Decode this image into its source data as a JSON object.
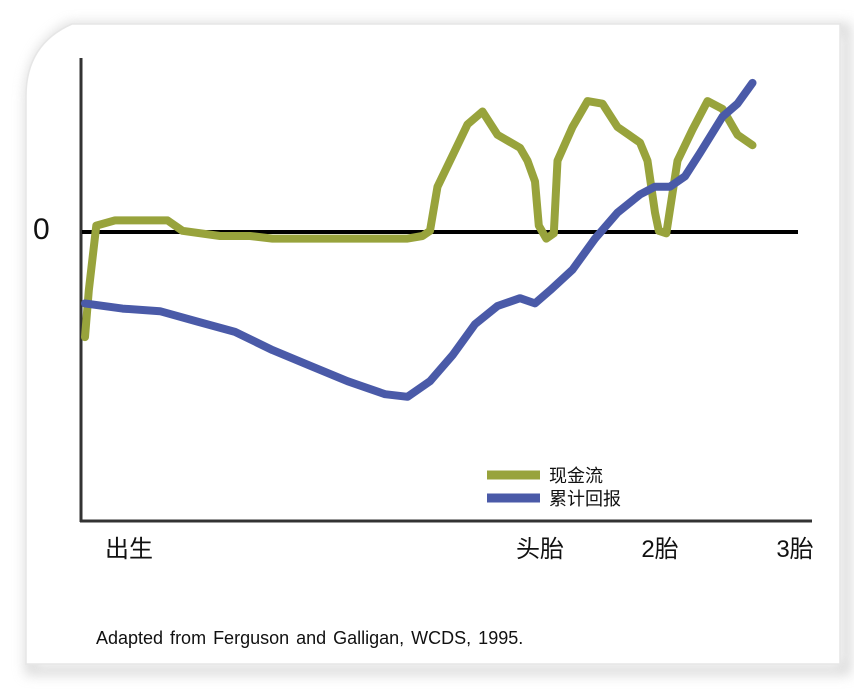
{
  "chart_data": {
    "type": "line",
    "y_zero_label": "0",
    "x_tick_labels": [
      {
        "label": "出生",
        "x": 0
      },
      {
        "label": "头胎",
        "x": 0.62
      },
      {
        "label": "2胎",
        "x": 0.78
      },
      {
        "label": "3胎",
        "x": 0.96
      }
    ],
    "ylim": [
      -1.0,
      0.6
    ],
    "xlim": [
      0,
      1
    ],
    "series": [
      {
        "name": "现金流",
        "color": "#98a33c",
        "points": [
          [
            0.0,
            -0.48
          ],
          [
            0.005,
            -0.3
          ],
          [
            0.015,
            -0.05
          ],
          [
            0.04,
            -0.03
          ],
          [
            0.11,
            -0.03
          ],
          [
            0.13,
            -0.07
          ],
          [
            0.18,
            -0.09
          ],
          [
            0.22,
            -0.09
          ],
          [
            0.25,
            -0.1
          ],
          [
            0.3,
            -0.1
          ],
          [
            0.43,
            -0.1
          ],
          [
            0.45,
            -0.09
          ],
          [
            0.46,
            -0.07
          ],
          [
            0.47,
            0.1
          ],
          [
            0.49,
            0.22
          ],
          [
            0.51,
            0.34
          ],
          [
            0.53,
            0.39
          ],
          [
            0.55,
            0.3
          ],
          [
            0.58,
            0.25
          ],
          [
            0.59,
            0.2
          ],
          [
            0.6,
            0.12
          ],
          [
            0.605,
            -0.05
          ],
          [
            0.615,
            -0.1
          ],
          [
            0.625,
            -0.08
          ],
          [
            0.63,
            0.2
          ],
          [
            0.65,
            0.33
          ],
          [
            0.67,
            0.43
          ],
          [
            0.69,
            0.42
          ],
          [
            0.71,
            0.33
          ],
          [
            0.725,
            0.3
          ],
          [
            0.74,
            0.27
          ],
          [
            0.75,
            0.2
          ],
          [
            0.76,
            0.0
          ],
          [
            0.765,
            -0.07
          ],
          [
            0.775,
            -0.08
          ],
          [
            0.79,
            0.2
          ],
          [
            0.81,
            0.32
          ],
          [
            0.83,
            0.43
          ],
          [
            0.85,
            0.4
          ],
          [
            0.87,
            0.3
          ],
          [
            0.89,
            0.26
          ]
        ]
      },
      {
        "name": "累计回报",
        "color": "#4a5aa8",
        "points": [
          [
            0.0,
            -0.35
          ],
          [
            0.05,
            -0.37
          ],
          [
            0.1,
            -0.38
          ],
          [
            0.15,
            -0.42
          ],
          [
            0.2,
            -0.46
          ],
          [
            0.25,
            -0.53
          ],
          [
            0.3,
            -0.59
          ],
          [
            0.35,
            -0.65
          ],
          [
            0.4,
            -0.7
          ],
          [
            0.43,
            -0.71
          ],
          [
            0.46,
            -0.65
          ],
          [
            0.49,
            -0.55
          ],
          [
            0.52,
            -0.43
          ],
          [
            0.55,
            -0.36
          ],
          [
            0.58,
            -0.33
          ],
          [
            0.6,
            -0.35
          ],
          [
            0.62,
            -0.3
          ],
          [
            0.65,
            -0.22
          ],
          [
            0.68,
            -0.1
          ],
          [
            0.71,
            0.0
          ],
          [
            0.74,
            0.07
          ],
          [
            0.76,
            0.1
          ],
          [
            0.78,
            0.1
          ],
          [
            0.8,
            0.14
          ],
          [
            0.82,
            0.23
          ],
          [
            0.85,
            0.37
          ],
          [
            0.87,
            0.42
          ],
          [
            0.89,
            0.5
          ]
        ]
      }
    ],
    "legend": {
      "position": "bottom-right",
      "entries": [
        "现金流",
        "累计回报"
      ]
    },
    "grid": false
  },
  "caption": "Adapted from Ferguson and Galligan, WCDS, 1995."
}
